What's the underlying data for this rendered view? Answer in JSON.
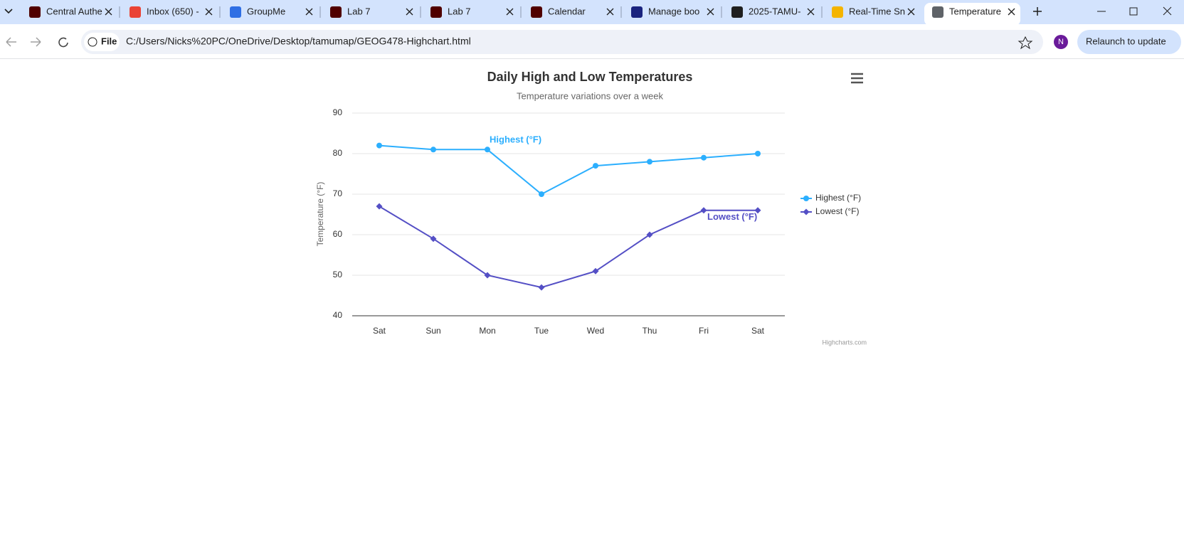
{
  "browser": {
    "tabs": [
      "Central Authe",
      "Inbox (650) -",
      "GroupMe",
      "Lab 7",
      "Lab 7",
      "Calendar",
      "Manage boo",
      "2025-TAMU-",
      "Real-Time Sn",
      "Temperature"
    ],
    "file_label": "File",
    "address": "C:/Users/Nicks%20PC/OneDrive/Desktop/tamumap/GEOG478-Highchart.html",
    "profile": "N",
    "relaunch": "Relaunch to update"
  },
  "chart_data": {
    "type": "line",
    "title": "Daily High and Low Temperatures",
    "subtitle": "Temperature variations over a week",
    "y_axis_title": "Temperature (°F)",
    "credits": "Highcharts.com",
    "categories": [
      "Sat",
      "Sun",
      "Mon",
      "Tue",
      "Wed",
      "Thu",
      "Fri",
      "Sat"
    ],
    "series": [
      {
        "name": "Highest (°F)",
        "color": "#2caffe",
        "marker": "circle",
        "values": [
          82,
          81,
          81,
          70,
          77,
          78,
          79,
          80
        ]
      },
      {
        "name": "Lowest (°F)",
        "color": "#544fc5",
        "marker": "diamond",
        "values": [
          67,
          59,
          50,
          47,
          51,
          60,
          66,
          66
        ]
      }
    ],
    "ylim": [
      40,
      90
    ],
    "yticks": [
      40,
      50,
      60,
      70,
      80,
      90
    ],
    "grid": true,
    "legend": "right"
  }
}
